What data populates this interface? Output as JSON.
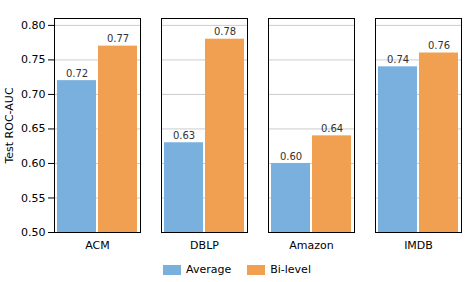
{
  "chart_data": {
    "type": "bar",
    "categories": [
      "ACM",
      "DBLP",
      "Amazon",
      "IMDB"
    ],
    "series": [
      {
        "name": "Average",
        "color": "#7ab0de",
        "values": [
          0.72,
          0.63,
          0.6,
          0.74
        ],
        "value_labels": [
          "0.72",
          "0.63",
          "0.60",
          "0.74"
        ]
      },
      {
        "name": "Bi-level",
        "color": "#f0a050",
        "values": [
          0.77,
          0.78,
          0.64,
          0.76
        ],
        "value_labels": [
          "0.77",
          "0.78",
          "0.64",
          "0.76"
        ]
      }
    ],
    "ylabel": "Test ROC-AUC",
    "ylim": [
      0.5,
      0.81
    ],
    "yticks": [
      {
        "value": 0.5,
        "label": "0.50"
      },
      0.55,
      {
        "value": 0.6,
        "label": "0.60"
      },
      0.65,
      {
        "value": 0.7,
        "label": "0.70"
      },
      0.75,
      {
        "value": 0.8,
        "label": "0.80"
      }
    ],
    "grid": true,
    "legend": "bottom",
    "data_labels": true
  }
}
